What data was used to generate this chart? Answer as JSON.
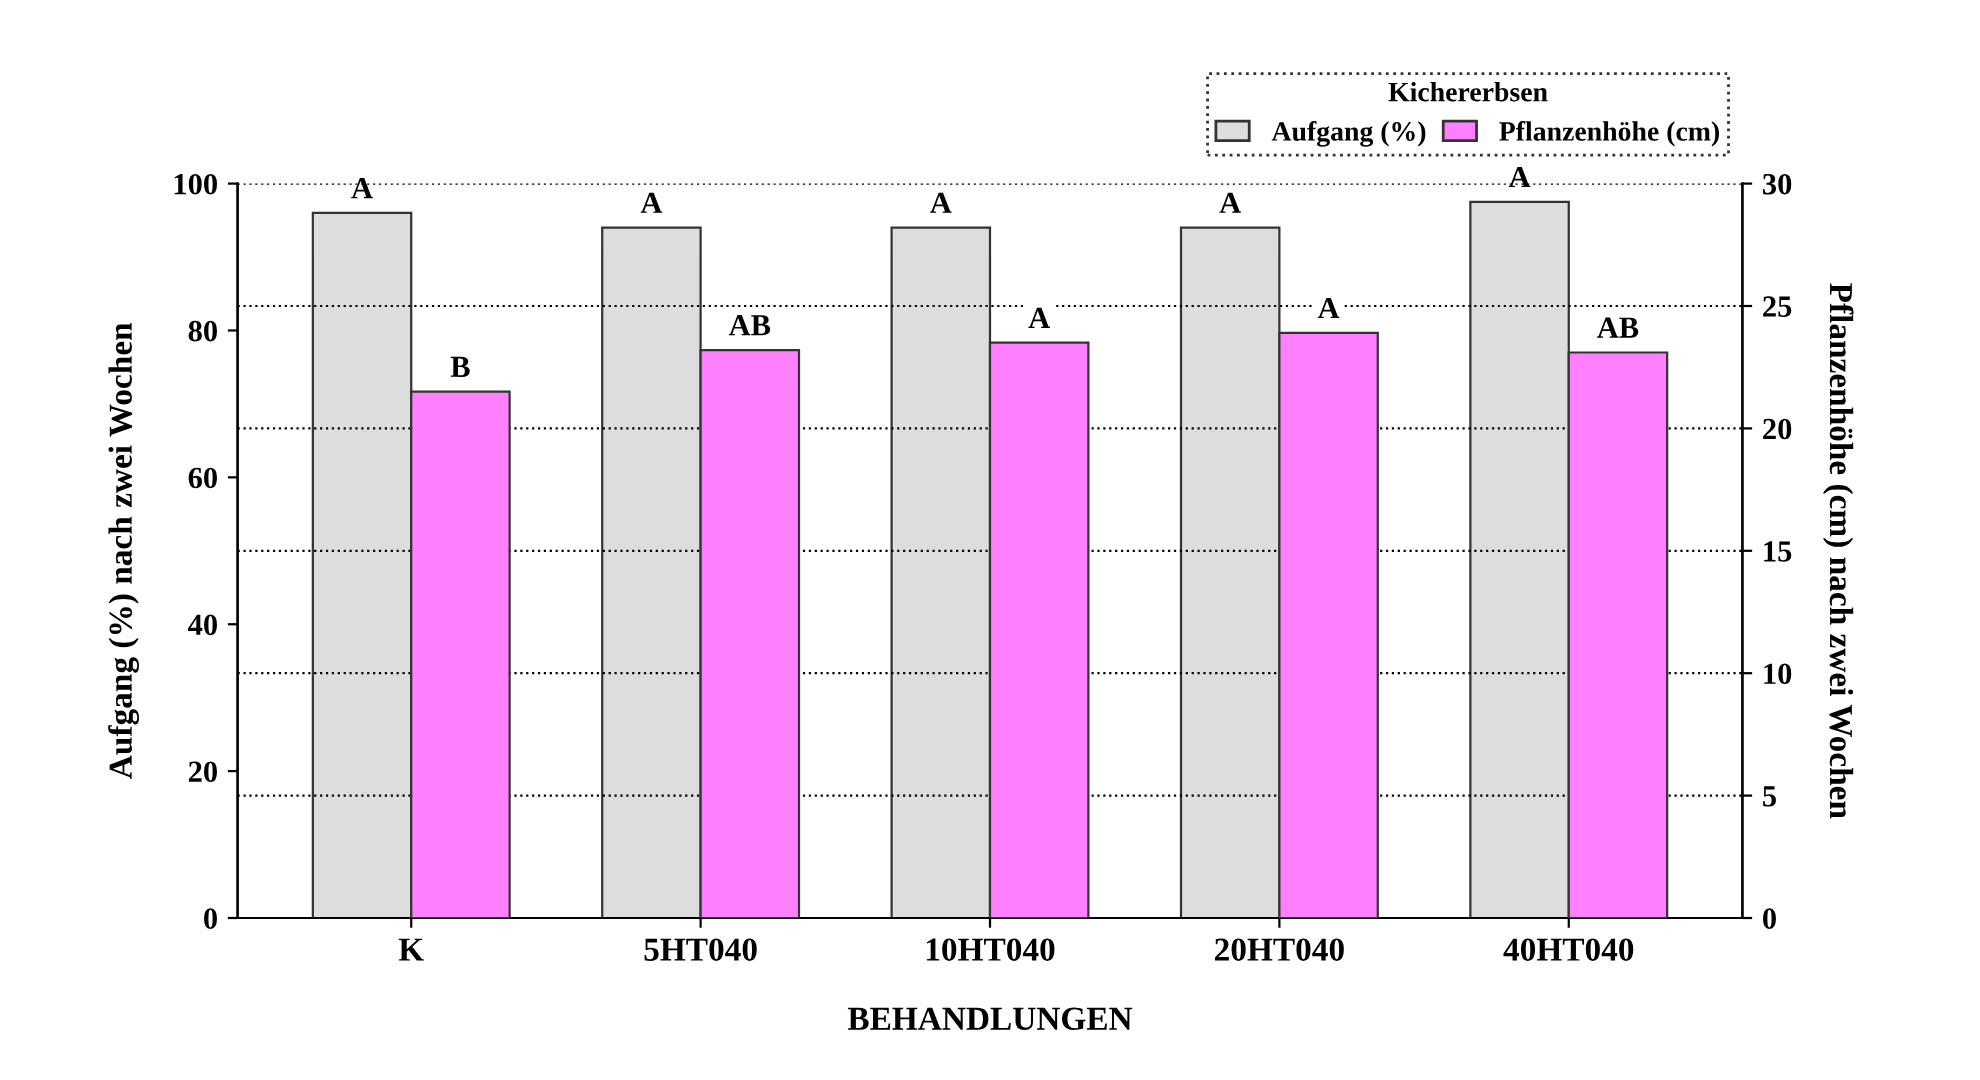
{
  "chart_data": {
    "type": "bar",
    "categories": [
      "K",
      "5HT040",
      "10HT040",
      "20HT040",
      "40HT040"
    ],
    "xlabel": "BEHANDLUNGEN",
    "ylabel": "Aufgang (%) nach zwei Wochen",
    "y2label": "Pflanzenhöhe (cm) nach zwei Wochen",
    "legend_title": "Kichererbsen",
    "series": [
      {
        "name": "Aufgang (%)",
        "color": "#dddddd",
        "values": [
          96,
          94,
          94,
          94,
          97.5
        ],
        "value_labels": [
          "A",
          "A",
          "A",
          "A",
          "A"
        ]
      },
      {
        "name": "Pflanzenhöhe (cm)",
        "color": "#ff80ff",
        "axis": "y2",
        "values": [
          21.5,
          23.2,
          23.5,
          23.9,
          23.1
        ],
        "value_labels": [
          "B",
          "AB",
          "A",
          "A",
          "AB"
        ]
      }
    ],
    "ylim": [
      0,
      100
    ],
    "yticks": [
      0,
      20,
      40,
      60,
      80,
      100
    ],
    "y2lim": [
      0,
      30
    ],
    "y2ticks": [
      0,
      5,
      10,
      15,
      20,
      25,
      30
    ],
    "grid": "y",
    "legend": "top right"
  }
}
